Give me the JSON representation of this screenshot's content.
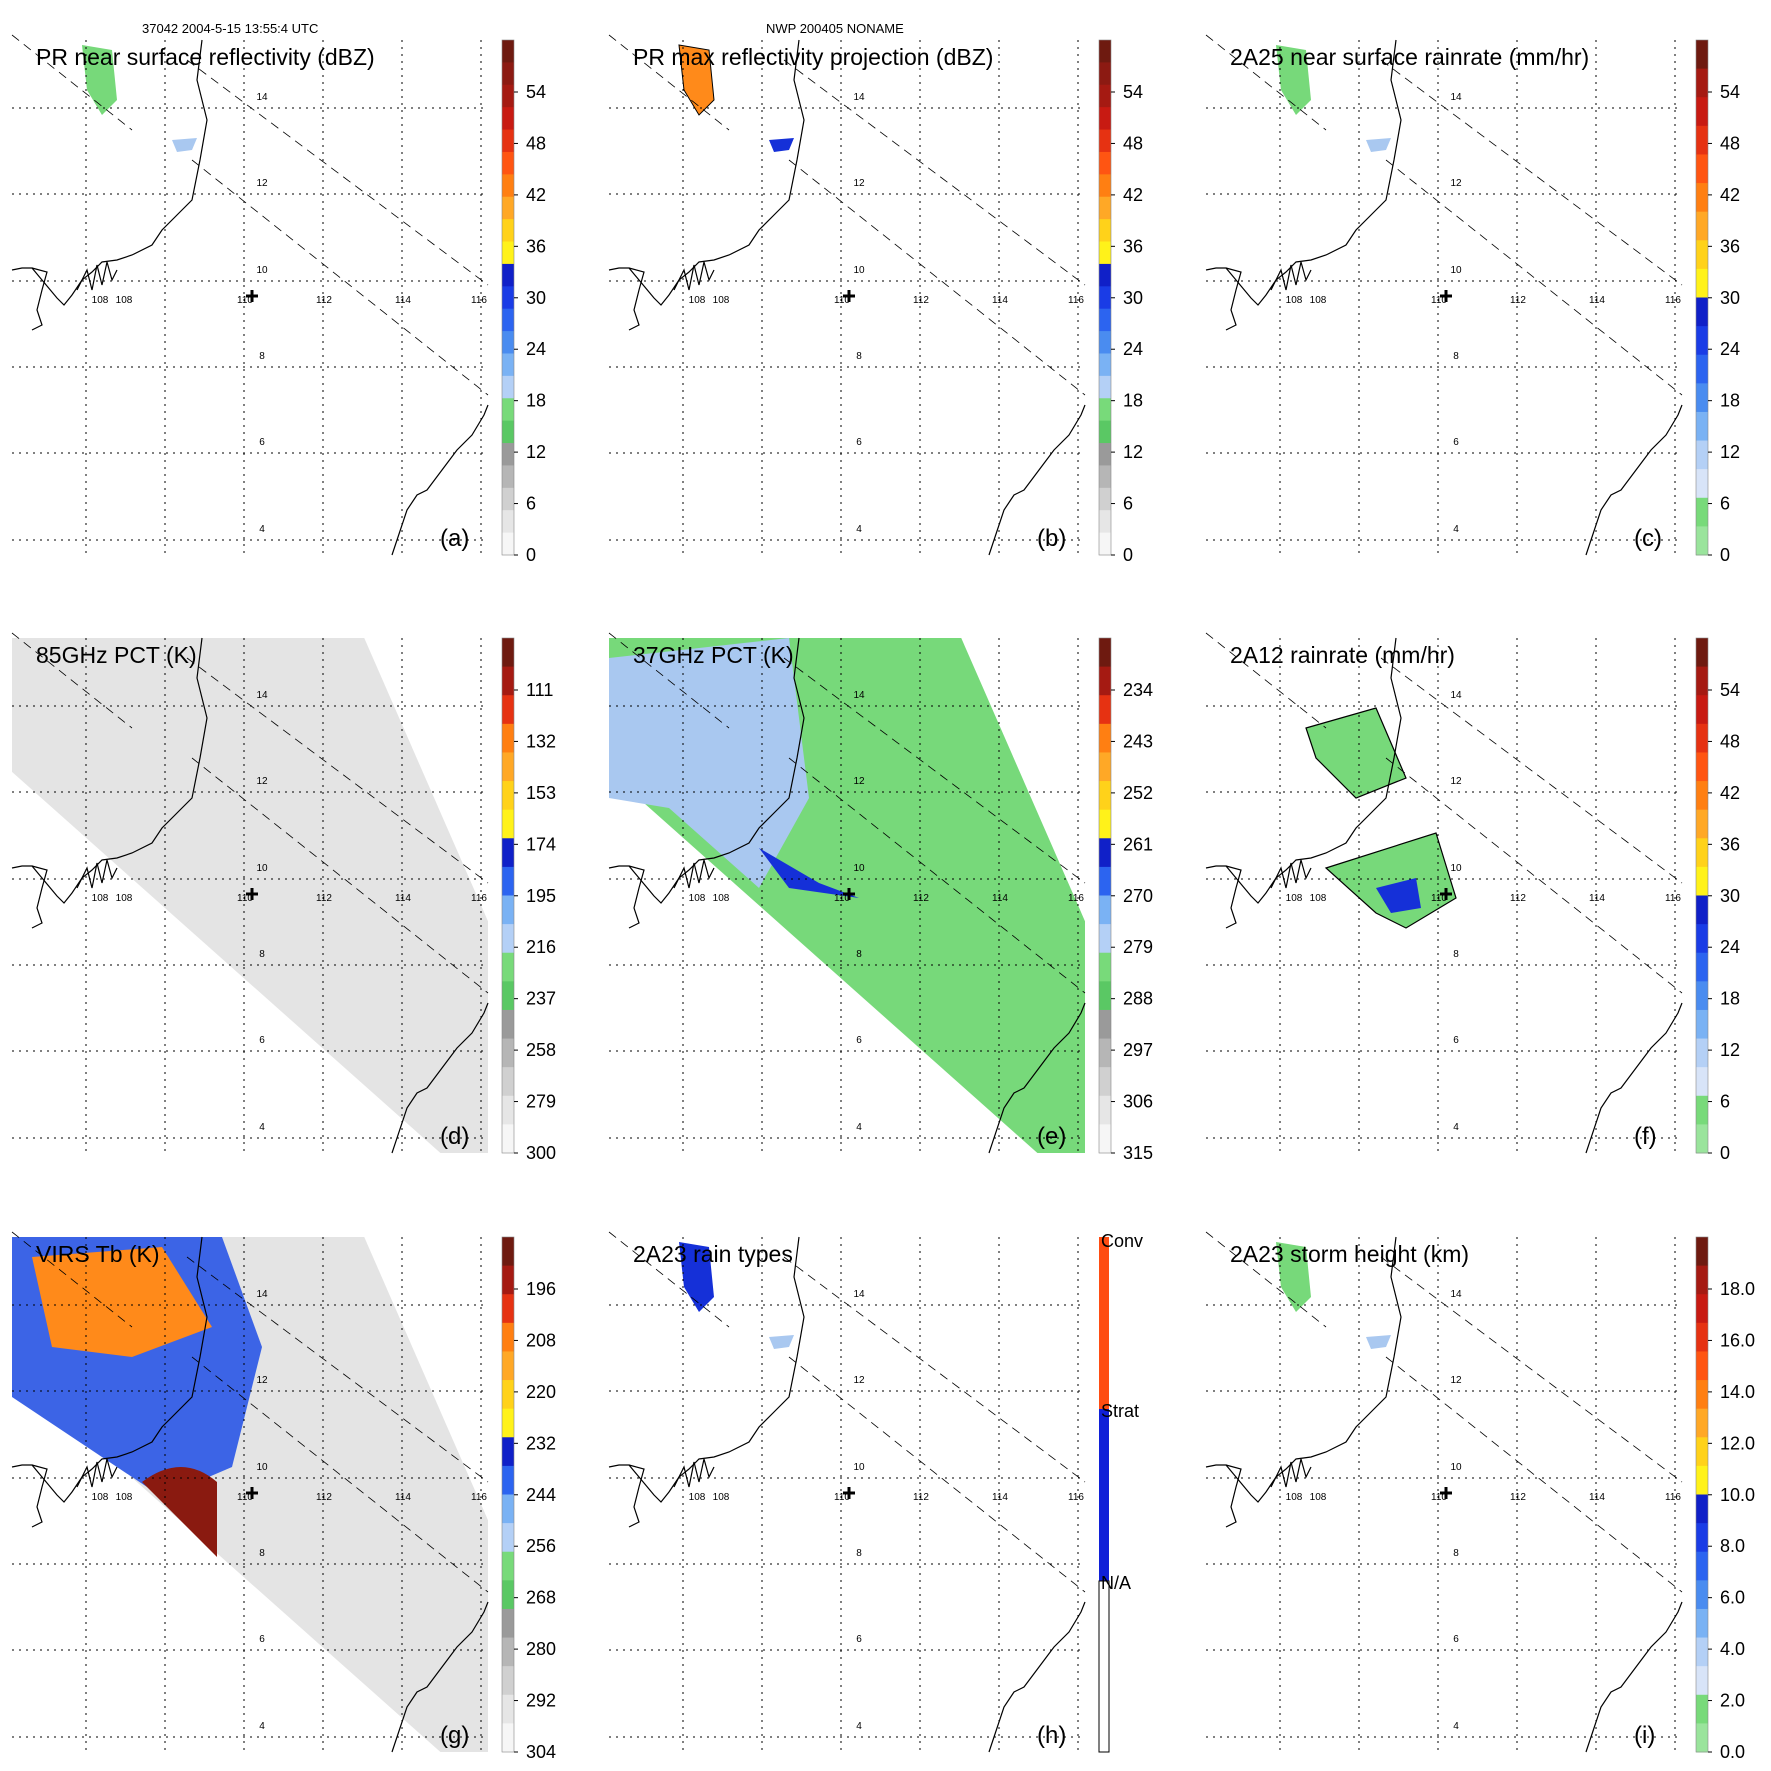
{
  "header": {
    "left": "37042 2004-5-15 13:55:4 UTC",
    "center": "NWP 200405 NONAME"
  },
  "colors": {
    "coast": "#000000",
    "grid": "#000000",
    "green": "#77d97a",
    "lightblue": "#a9c8f0",
    "blue": "#1530d8",
    "orange": "#ff8a1a",
    "darkred": "#8a1a10",
    "swathgray": "#e4e4e4"
  },
  "chart_data": [
    {
      "panel": "a",
      "type": "heatmap",
      "title": "PR near surface reflectivity (dBZ)",
      "label": "(a)",
      "colorbar": {
        "ticks": [
          "54",
          "48",
          "42",
          "36",
          "30",
          "24",
          "18",
          "12",
          "6",
          "0"
        ],
        "min": 0,
        "max": 60
      },
      "lon_ticks": [
        "108",
        "108",
        "110",
        "112",
        "114",
        "116"
      ],
      "lat_ticks": [
        "14",
        "12",
        "10",
        "8",
        "6",
        "4"
      ]
    },
    {
      "panel": "b",
      "type": "heatmap",
      "title": "PR max reflectivity projection (dBZ)",
      "label": "(b)",
      "colorbar": {
        "ticks": [
          "54",
          "48",
          "42",
          "36",
          "30",
          "24",
          "18",
          "12",
          "6",
          "0"
        ],
        "min": 0,
        "max": 60
      },
      "lon_ticks": [
        "108",
        "108",
        "110",
        "112",
        "114",
        "116"
      ],
      "lat_ticks": [
        "14",
        "12",
        "10",
        "8",
        "6",
        "4"
      ]
    },
    {
      "panel": "c",
      "type": "heatmap",
      "title": "2A25 near surface rainrate (mm/hr)",
      "label": "(c)",
      "colorbar": {
        "ticks": [
          "54",
          "48",
          "42",
          "36",
          "30",
          "24",
          "18",
          "12",
          "6",
          "0"
        ],
        "min": 0,
        "max": 60
      },
      "lon_ticks": [
        "108",
        "108",
        "110",
        "112",
        "114",
        "116"
      ],
      "lat_ticks": [
        "14",
        "12",
        "10",
        "8",
        "6",
        "4"
      ]
    },
    {
      "panel": "d",
      "type": "heatmap",
      "title": "85GHz PCT (K)",
      "label": "(d)",
      "colorbar": {
        "ticks": [
          "111",
          "132",
          "153",
          "174",
          "195",
          "216",
          "237",
          "258",
          "279",
          "300"
        ],
        "min": 90,
        "max": 300
      },
      "lon_ticks": [
        "108",
        "108",
        "110",
        "112",
        "114",
        "116"
      ],
      "lat_ticks": [
        "14",
        "12",
        "10",
        "8",
        "6",
        "4"
      ]
    },
    {
      "panel": "e",
      "type": "heatmap",
      "title": "37GHz PCT (K)",
      "label": "(e)",
      "colorbar": {
        "ticks": [
          "234",
          "243",
          "252",
          "261",
          "270",
          "279",
          "288",
          "297",
          "306",
          "315"
        ],
        "min": 225,
        "max": 315
      },
      "lon_ticks": [
        "108",
        "108",
        "110",
        "112",
        "114",
        "116"
      ],
      "lat_ticks": [
        "14",
        "12",
        "10",
        "8",
        "6",
        "4"
      ]
    },
    {
      "panel": "f",
      "type": "heatmap",
      "title": "2A12 rainrate (mm/hr)",
      "label": "(f)",
      "colorbar": {
        "ticks": [
          "54",
          "48",
          "42",
          "36",
          "30",
          "24",
          "18",
          "12",
          "6",
          "0"
        ],
        "min": 0,
        "max": 60
      },
      "lon_ticks": [
        "108",
        "108",
        "110",
        "112",
        "114",
        "116"
      ],
      "lat_ticks": [
        "14",
        "12",
        "10",
        "8",
        "6",
        "4"
      ]
    },
    {
      "panel": "g",
      "type": "heatmap",
      "title": "VIRS Tb (K)",
      "label": "(g)",
      "colorbar": {
        "ticks": [
          "196",
          "208",
          "220",
          "232",
          "244",
          "256",
          "268",
          "280",
          "292",
          "304"
        ],
        "min": 184,
        "max": 304
      },
      "lon_ticks": [
        "108",
        "108",
        "110",
        "112",
        "114",
        "116"
      ],
      "lat_ticks": [
        "14",
        "12",
        "10",
        "8",
        "6",
        "4"
      ]
    },
    {
      "panel": "h",
      "type": "heatmap",
      "title": "2A23 rain types",
      "label": "(h)",
      "colorbar": {
        "ticks": [
          "Conv",
          "Strat",
          "N/A"
        ],
        "categories": [
          "Conv",
          "Strat",
          "N/A"
        ]
      },
      "lon_ticks": [
        "108",
        "108",
        "110",
        "112",
        "114",
        "116"
      ],
      "lat_ticks": [
        "14",
        "12",
        "10",
        "8",
        "6",
        "4"
      ]
    },
    {
      "panel": "i",
      "type": "heatmap",
      "title": "2A23 storm height (km)",
      "label": "(i)",
      "colorbar": {
        "ticks": [
          "18.0",
          "16.0",
          "14.0",
          "12.0",
          "10.0",
          "8.0",
          "6.0",
          "4.0",
          "2.0",
          "0.0"
        ],
        "min": 0,
        "max": 20
      },
      "lon_ticks": [
        "108",
        "108",
        "110",
        "112",
        "114",
        "116"
      ],
      "lat_ticks": [
        "14",
        "12",
        "10",
        "8",
        "6",
        "4"
      ]
    }
  ]
}
